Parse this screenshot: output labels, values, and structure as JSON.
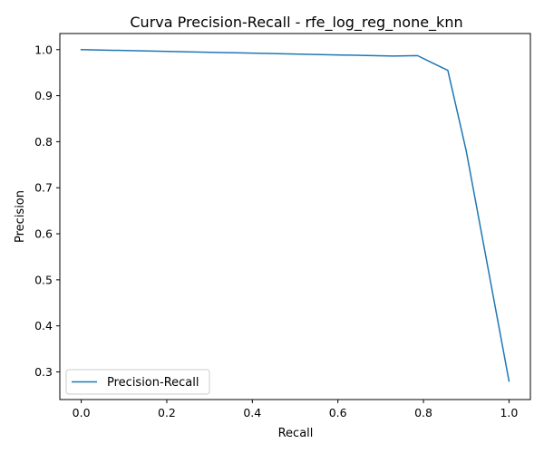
{
  "chart_data": {
    "type": "line",
    "title": "Curva Precision-Recall - rfe_log_reg_none_knn",
    "xlabel": "Recall",
    "ylabel": "Precision",
    "xlim": [
      -0.05,
      1.05
    ],
    "ylim": [
      0.24,
      1.035
    ],
    "xticks": [
      0.0,
      0.2,
      0.4,
      0.6,
      0.8,
      1.0
    ],
    "yticks": [
      0.3,
      0.4,
      0.5,
      0.6,
      0.7,
      0.8,
      0.9,
      1.0
    ],
    "xtick_labels": [
      "0.0",
      "0.2",
      "0.4",
      "0.6",
      "0.8",
      "1.0"
    ],
    "ytick_labels": [
      "0.3",
      "0.4",
      "0.5",
      "0.6",
      "0.7",
      "0.8",
      "0.9",
      "1.0"
    ],
    "grid": false,
    "legend_position": "lower-left",
    "series": [
      {
        "name": "Precision-Recall",
        "color": "#1f77b4",
        "x": [
          0.0,
          0.73,
          0.786,
          0.81,
          0.857,
          0.9,
          1.0
        ],
        "y": [
          1.0,
          0.986,
          0.987,
          0.976,
          0.955,
          0.78,
          0.28
        ]
      }
    ]
  }
}
